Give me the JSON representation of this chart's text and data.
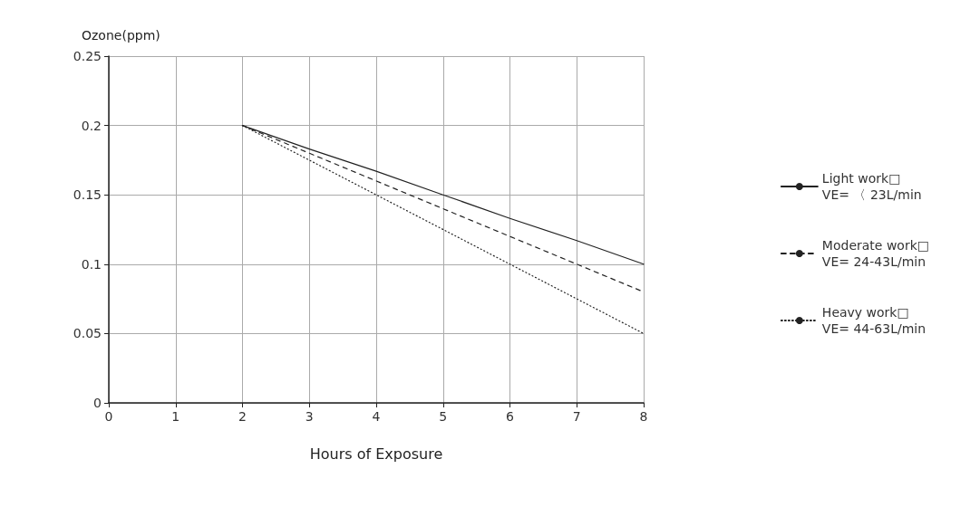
{
  "chart_data": {
    "type": "line",
    "xlabel": "Hours of Exposure",
    "ylabel": "Ozone(ppm)",
    "xlim": [
      0,
      8
    ],
    "xticks": [
      0,
      1,
      2,
      3,
      4,
      5,
      6,
      7,
      8
    ],
    "ylim": [
      0,
      0.25
    ],
    "yticks": [
      0,
      0.05,
      0.1,
      0.15,
      0.2,
      0.25
    ],
    "grid": true,
    "legend": "right",
    "marker": "none",
    "series": [
      {
        "name": "Light work□\nVE= 〈 23L/min",
        "color": "#222222",
        "line_style": "solid",
        "x": [
          2,
          3,
          4,
          5,
          6,
          7,
          8
        ],
        "values": [
          0.2,
          0.183,
          0.167,
          0.15,
          0.133,
          0.117,
          0.1
        ]
      },
      {
        "name": "Moderate work□\nVE= 24-43L/min",
        "color": "#222222",
        "line_style": "dashed",
        "x": [
          2,
          3,
          4,
          5,
          6,
          7,
          8
        ],
        "values": [
          0.2,
          0.18,
          0.16,
          0.14,
          0.12,
          0.1,
          0.08
        ]
      },
      {
        "name": "Heavy work□\nVE= 44-63L/min",
        "color": "#222222",
        "line_style": "dotted",
        "x": [
          2,
          3,
          4,
          5,
          6,
          7,
          8
        ],
        "values": [
          0.2,
          0.175,
          0.15,
          0.125,
          0.1,
          0.075,
          0.05
        ]
      }
    ]
  }
}
